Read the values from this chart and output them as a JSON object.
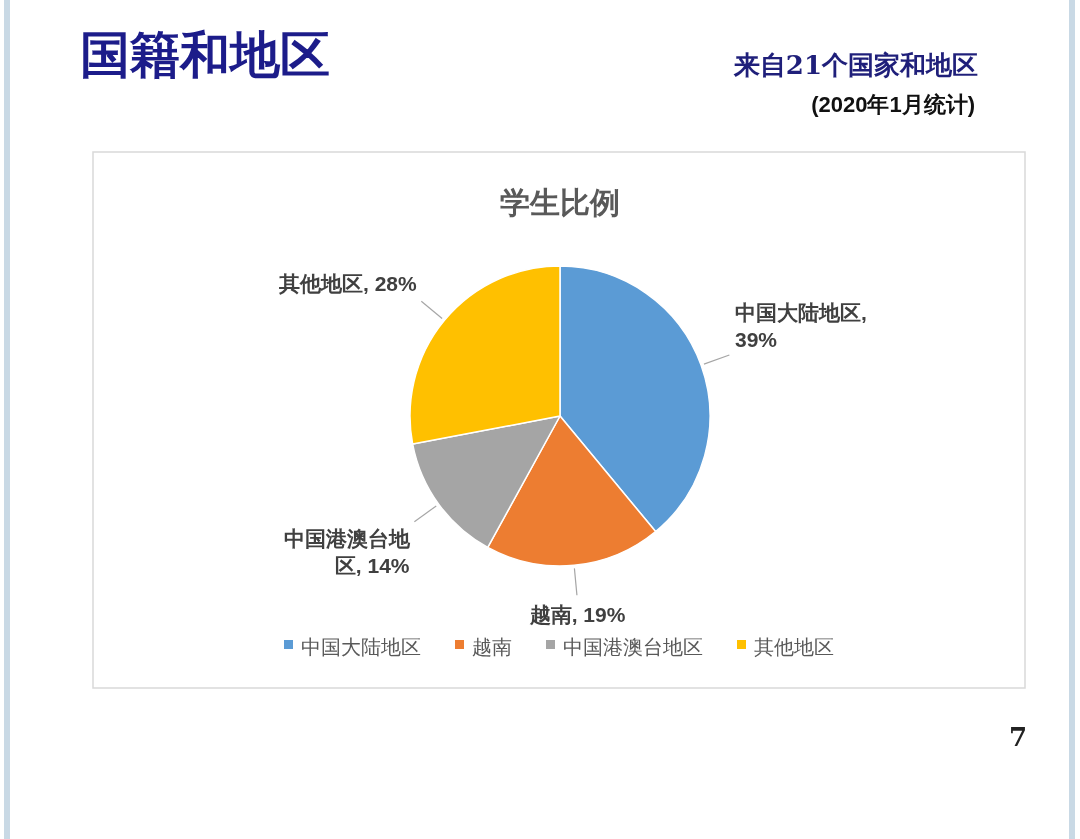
{
  "chart_data": {
    "type": "pie",
    "title": "学生比例",
    "annotations": [
      "国籍和地区",
      "来自21个国家和地区",
      "(2020年1月统计)",
      "7"
    ],
    "categories": [
      "中国大陆地区",
      "越南",
      "中国港澳台地区",
      "其他地区"
    ],
    "values": [
      39,
      19,
      14,
      28
    ],
    "colors": [
      "#5b9bd5",
      "#ed7d31",
      "#a5a5a5",
      "#ffc000"
    ],
    "value_labels": [
      "中国大陆地区, 39%",
      "越南, 19%",
      "中国港澳台地区, 14%",
      "其他地区, 28%"
    ],
    "legend": "bottom"
  }
}
